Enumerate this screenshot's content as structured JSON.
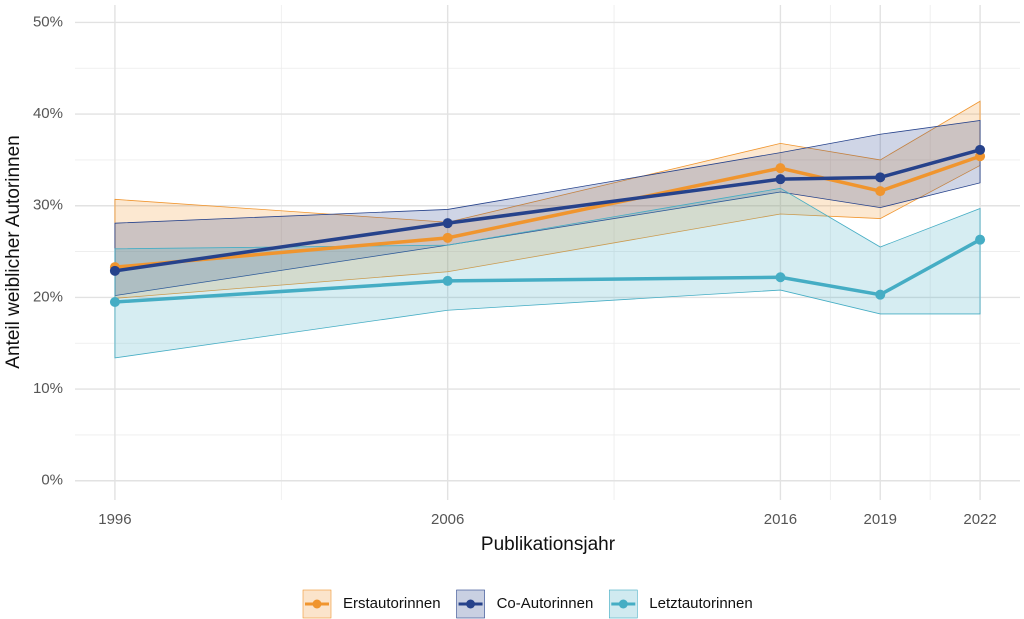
{
  "chart_data": {
    "type": "line",
    "xlabel": "Publikationsjahr",
    "ylabel": "Anteil weiblicher Autorinnen",
    "x": [
      1996,
      2006,
      2016,
      2019,
      2022
    ],
    "xlim": [
      1994.8,
      2023.2
    ],
    "xticks": [
      1996,
      2006,
      2016,
      2019,
      2022
    ],
    "ylim": [
      -2.1,
      51.9
    ],
    "yticks": [
      {
        "value": 0,
        "label": "0%"
      },
      {
        "value": 10,
        "label": "10%"
      },
      {
        "value": 20,
        "label": "20%"
      },
      {
        "value": 30,
        "label": "30%"
      },
      {
        "value": 40,
        "label": "40%"
      },
      {
        "value": 50,
        "label": "50%"
      }
    ],
    "grid": true,
    "legend": "bottom",
    "series": [
      {
        "name": "Erstautorinnen",
        "color": "#f0952e",
        "values": [
          23.3,
          26.5,
          34.1,
          31.6,
          35.4
        ],
        "lower": [
          19.9,
          22.8,
          29.1,
          28.6,
          34.4
        ],
        "upper": [
          30.7,
          28.2,
          36.8,
          35.0,
          41.4
        ]
      },
      {
        "name": "Co-Autorinnen",
        "color": "#26428b",
        "values": [
          22.9,
          28.1,
          32.9,
          33.1,
          36.1
        ],
        "lower": [
          20.2,
          25.7,
          31.5,
          29.8,
          32.5
        ],
        "upper": [
          28.1,
          29.6,
          35.8,
          37.8,
          39.3
        ]
      },
      {
        "name": "Letztautorinnen",
        "color": "#45adc4",
        "values": [
          19.5,
          21.8,
          22.2,
          20.3,
          26.3
        ],
        "lower": [
          13.4,
          18.6,
          20.8,
          18.2,
          18.2
        ],
        "upper": [
          25.3,
          25.7,
          31.9,
          25.5,
          29.7
        ]
      }
    ]
  }
}
